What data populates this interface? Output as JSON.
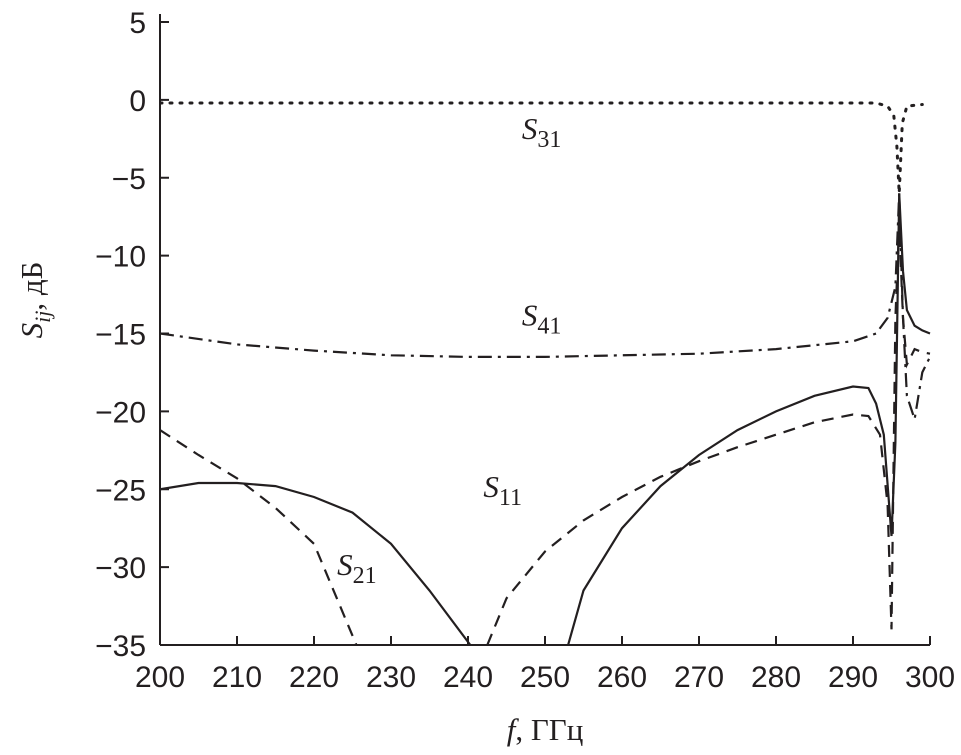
{
  "chart_data": {
    "type": "line",
    "x_label": "f, ГГц",
    "y_label": "Sij, дБ",
    "xlim": [
      200,
      300
    ],
    "ylim": [
      -35,
      5
    ],
    "xticks": [
      200,
      210,
      220,
      230,
      240,
      250,
      260,
      270,
      280,
      290,
      300
    ],
    "yticks": [
      {
        "value": -35,
        "label": "−35"
      },
      {
        "value": -30,
        "label": "−30"
      },
      {
        "value": -25,
        "label": "−25"
      },
      {
        "value": -20,
        "label": "−20"
      },
      {
        "value": -15,
        "label": "−15"
      },
      {
        "value": -10,
        "label": "−10"
      },
      {
        "value": -5,
        "label": "−5"
      },
      0,
      5
    ],
    "series": [
      {
        "name": "S31",
        "color": "#231f20",
        "dash": "dotted",
        "x": [
          200,
          220,
          240,
          260,
          280,
          293,
          294.5,
          295.3,
          295.7,
          296,
          296.4,
          297,
          299
        ],
        "values": [
          -0.2,
          -0.2,
          -0.2,
          -0.2,
          -0.2,
          -0.2,
          -0.4,
          -1,
          -3,
          -6,
          -1.5,
          -0.4,
          -0.3
        ]
      },
      {
        "name": "S41",
        "color": "#231f20",
        "dash": "dashdot",
        "x": [
          200,
          210,
          220,
          230,
          240,
          250,
          260,
          270,
          280,
          290,
          293,
          294.5,
          295.5,
          296,
          296.5,
          297,
          298,
          299,
          300
        ],
        "values": [
          -15,
          -15.7,
          -16.1,
          -16.4,
          -16.5,
          -16.5,
          -16.4,
          -16.3,
          -16,
          -15.5,
          -15,
          -14,
          -12,
          -6,
          -14,
          -19,
          -20.5,
          -17.5,
          -16.5
        ]
      },
      {
        "name": "S11",
        "color": "#231f20",
        "dash": "solid",
        "x": [
          200,
          205,
          210,
          215,
          220,
          225,
          230,
          235,
          240.3,
          247,
          253,
          255,
          260,
          265,
          270,
          275,
          280,
          285,
          290,
          292,
          293,
          294,
          295,
          295.5,
          296,
          296.5,
          297,
          298,
          299,
          300
        ],
        "values": [
          -25,
          -24.6,
          -24.6,
          -24.8,
          -25.5,
          -26.5,
          -28.5,
          -31.5,
          -35,
          null,
          -35,
          -31.5,
          -27.5,
          -24.8,
          -22.8,
          -21.2,
          -20,
          -19,
          -18.4,
          -18.5,
          -19.5,
          -21.5,
          -28,
          -22,
          -6,
          -11,
          -13.5,
          -14.5,
          -14.8,
          -15
        ]
      },
      {
        "name": "S21",
        "color": "#231f20",
        "dash": "dashed",
        "x": [
          200,
          205,
          210,
          215,
          220,
          225.5,
          234,
          242.5,
          245,
          250,
          255,
          260,
          265,
          270,
          275,
          280,
          285,
          290,
          292,
          293.5,
          294.5,
          295,
          295.5,
          296,
          296.5,
          297,
          298,
          299,
          300
        ],
        "values": [
          -21.2,
          -22.8,
          -24.3,
          -26.2,
          -28.5,
          -35,
          null,
          -35,
          -32,
          -29,
          -27,
          -25.5,
          -24.2,
          -23.2,
          -22.3,
          -21.5,
          -20.7,
          -20.2,
          -20.3,
          -21.5,
          -26,
          -34,
          -14,
          -8,
          -14,
          -17,
          -16,
          -16.2,
          -16.3
        ]
      }
    ]
  }
}
